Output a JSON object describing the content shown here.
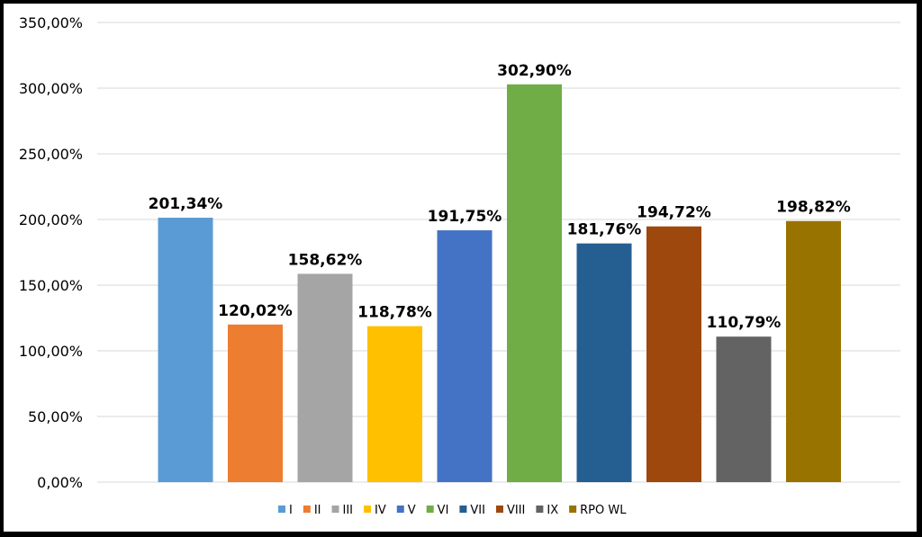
{
  "chart_data": {
    "type": "bar",
    "categories": [
      "I",
      "II",
      "III",
      "IV",
      "V",
      "VI",
      "VII",
      "VIII",
      "IX",
      "RPO WL"
    ],
    "values": [
      201.34,
      120.02,
      158.62,
      118.78,
      191.75,
      302.9,
      181.76,
      194.72,
      110.79,
      198.82
    ],
    "value_labels": [
      "201,34%",
      "120,02%",
      "158,62%",
      "118,78%",
      "191,75%",
      "302,90%",
      "181,76%",
      "194,72%",
      "110,79%",
      "198,82%"
    ],
    "colors": [
      "#5b9bd5",
      "#ed7d31",
      "#a5a5a5",
      "#ffc000",
      "#4472c4",
      "#70ad47",
      "#255e91",
      "#9e480e",
      "#636363",
      "#997300"
    ],
    "ylim": [
      0,
      350
    ],
    "yticks": [
      0,
      50,
      100,
      150,
      200,
      250,
      300,
      350
    ],
    "ytick_labels": [
      "0,00%",
      "50,00%",
      "100,00%",
      "150,00%",
      "200,00%",
      "250,00%",
      "300,00%",
      "350,00%"
    ],
    "grid": true,
    "legend_position": "bottom",
    "title": "",
    "xlabel": "",
    "ylabel": ""
  }
}
